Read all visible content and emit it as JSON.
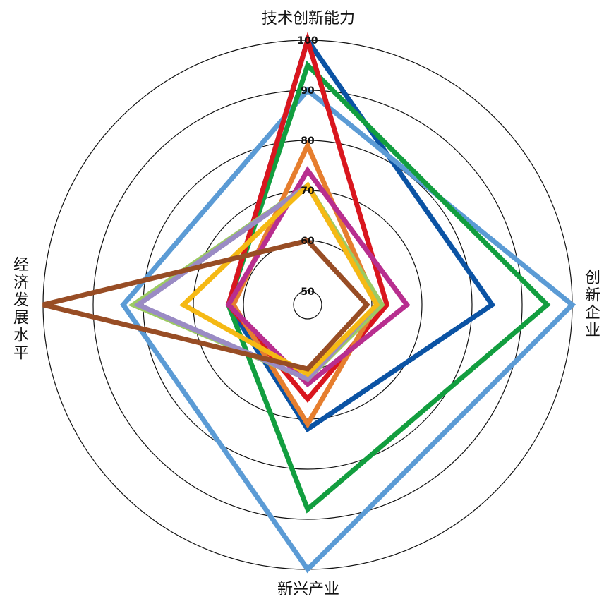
{
  "chart_data": {
    "type": "radar",
    "axes": [
      "技术创新能力",
      "创新企业",
      "新兴产业",
      "经济发展水平"
    ],
    "rlim": [
      50,
      100
    ],
    "ticks": [
      50,
      60,
      70,
      80,
      90,
      100
    ],
    "grid": true,
    "series": [
      {
        "color": "#0B53A4",
        "values": [
          100,
          84,
          72,
          63
        ]
      },
      {
        "color": "#5B9BD5",
        "values": [
          90,
          100,
          100,
          84
        ]
      },
      {
        "color": "#129E3F",
        "values": [
          95,
          95,
          88,
          63
        ]
      },
      {
        "color": "#D9161E",
        "values": [
          100,
          63,
          66,
          63
        ]
      },
      {
        "color": "#E67E2E",
        "values": [
          79,
          61,
          71,
          62
        ]
      },
      {
        "color": "#B82E8F",
        "values": [
          74,
          67,
          63,
          63
        ]
      },
      {
        "color": "#9CCB62",
        "values": [
          71,
          62,
          62,
          82
        ]
      },
      {
        "color": "#9A8BC4",
        "values": [
          71,
          61,
          62,
          81
        ]
      },
      {
        "color": "#F5B914",
        "values": [
          71,
          61,
          61,
          72
        ]
      },
      {
        "color": "#984D25",
        "values": [
          60,
          59,
          60,
          100
        ]
      }
    ]
  }
}
